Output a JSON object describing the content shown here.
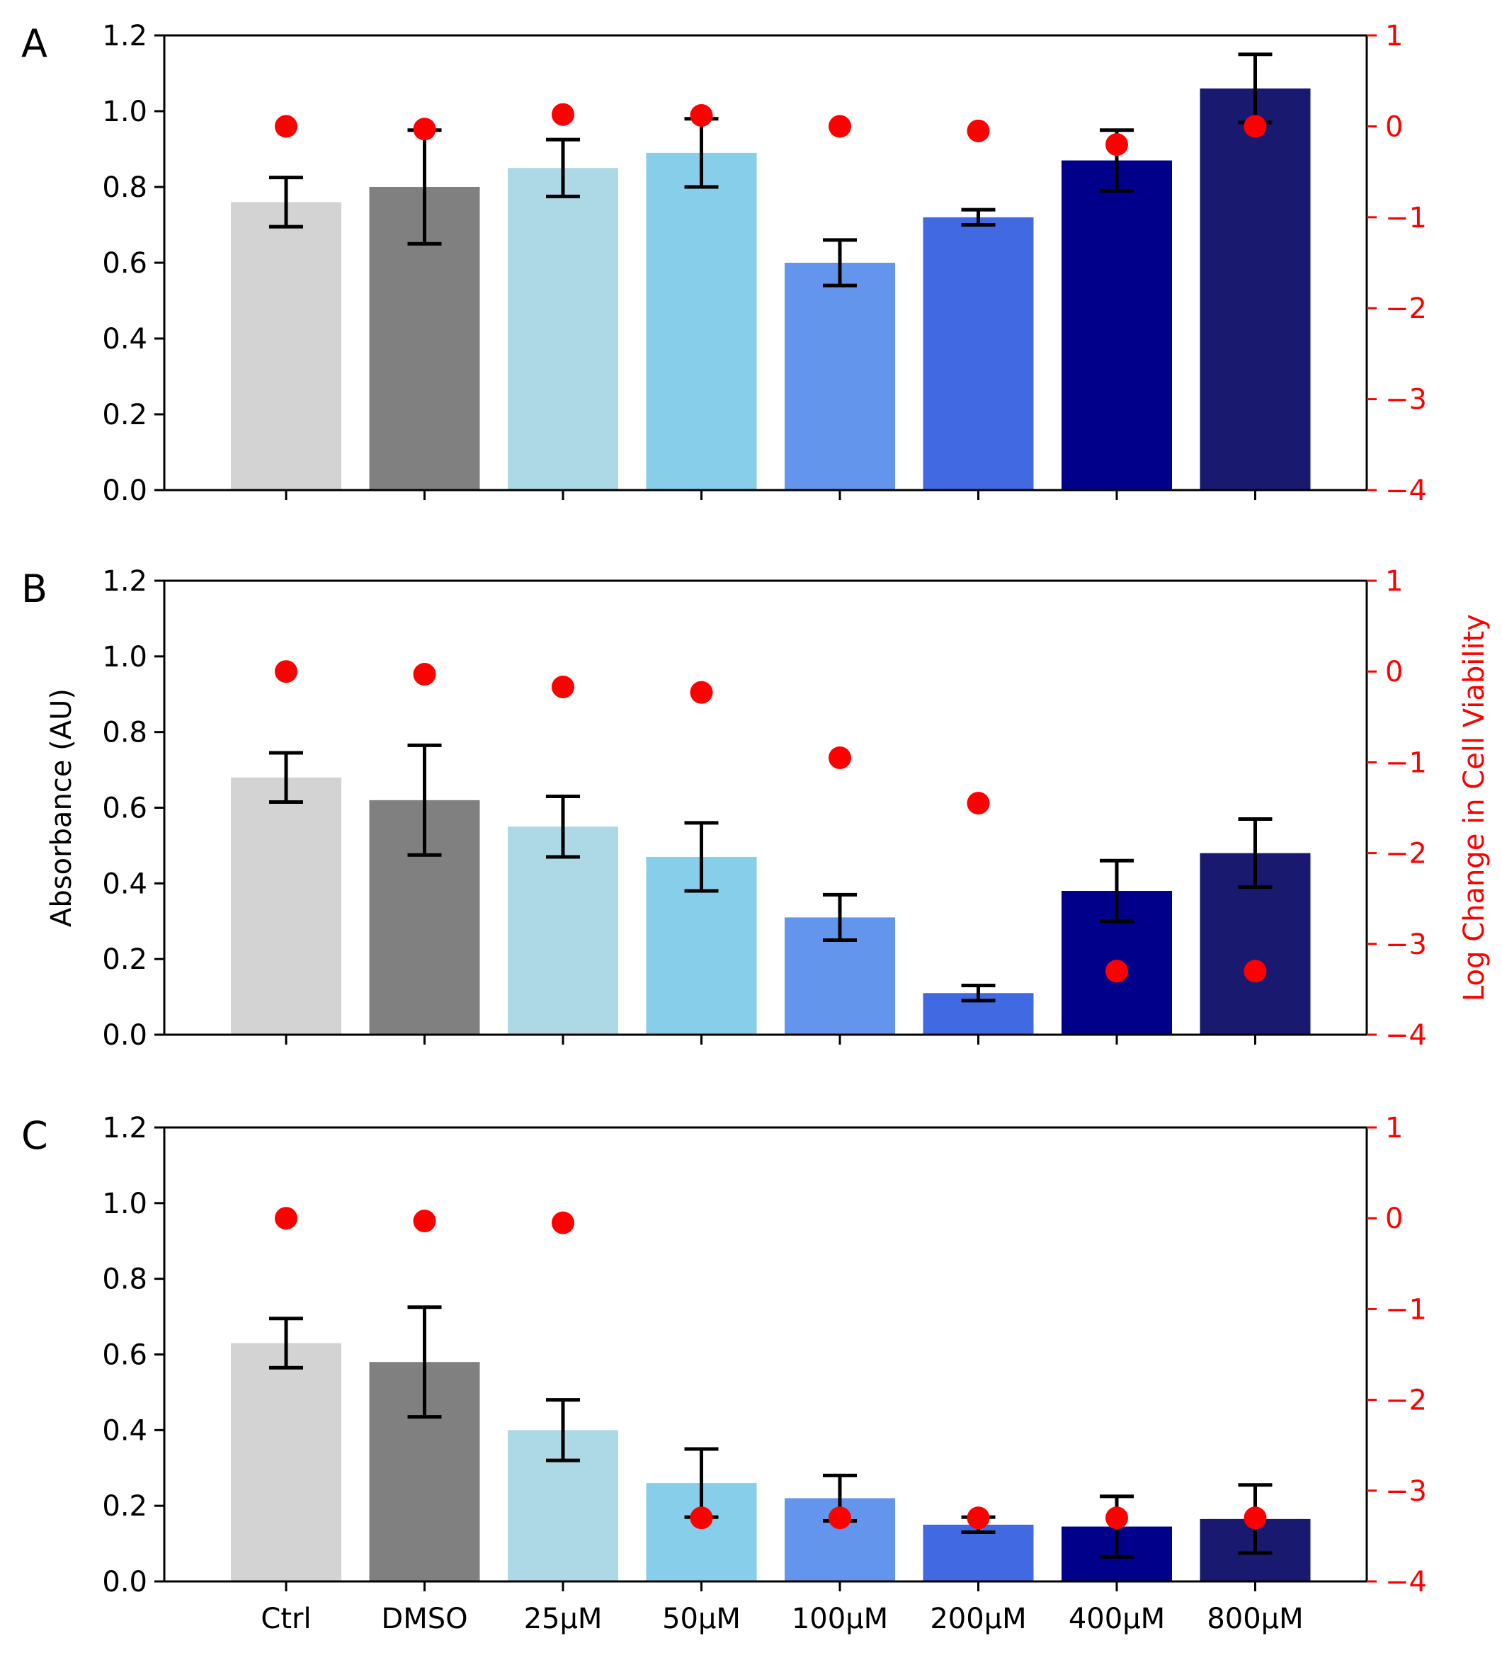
{
  "colors": {
    "right_axis": "#ff0000",
    "dots": "#ff0000",
    "error_bars": "#000000",
    "bars": [
      "#d3d3d3",
      "#808080",
      "#add8e6",
      "#87ceeb",
      "#6495ed",
      "#4169e1",
      "#00008b",
      "#191970"
    ]
  },
  "chart_data": [
    {
      "type": "bar",
      "panel_label": "A",
      "categories": [
        "Ctrl",
        "DMSO",
        "25µM",
        "50µM",
        "100µM",
        "200µM",
        "400µM",
        "800µM"
      ],
      "series": [
        {
          "name": "Absorbance (AU)",
          "axis": "left",
          "values": [
            0.76,
            0.8,
            0.85,
            0.89,
            0.6,
            0.72,
            0.87,
            1.06
          ],
          "errors": [
            0.065,
            0.15,
            0.075,
            0.09,
            0.06,
            0.02,
            0.08,
            0.09
          ]
        },
        {
          "name": "Log Change in Cell Viability",
          "axis": "right",
          "type": "scatter",
          "values": [
            0.0,
            -0.03,
            0.13,
            0.12,
            0.0,
            -0.05,
            -0.2,
            0.0
          ]
        }
      ],
      "ylim": [
        0,
        1.2
      ],
      "yticks": [
        "0.0",
        "0.2",
        "0.4",
        "0.6",
        "0.8",
        "1.0",
        "1.2"
      ],
      "y2lim": [
        -4,
        1
      ],
      "y2ticks": [
        "−4",
        "−3",
        "−2",
        "−1",
        "0",
        "1"
      ]
    },
    {
      "type": "bar",
      "panel_label": "B",
      "ylabel": "Absorbance (AU)",
      "y2label": "Log Change in Cell Viability",
      "categories": [
        "Ctrl",
        "DMSO",
        "25µM",
        "50µM",
        "100µM",
        "200µM",
        "400µM",
        "800µM"
      ],
      "series": [
        {
          "name": "Absorbance (AU)",
          "axis": "left",
          "values": [
            0.68,
            0.62,
            0.55,
            0.47,
            0.31,
            0.11,
            0.38,
            0.48
          ],
          "errors": [
            0.065,
            0.145,
            0.08,
            0.09,
            0.06,
            0.02,
            0.08,
            0.09
          ]
        },
        {
          "name": "Log Change in Cell Viability",
          "axis": "right",
          "type": "scatter",
          "values": [
            0.0,
            -0.03,
            -0.17,
            -0.23,
            -0.95,
            -1.45,
            -3.3,
            -3.3
          ]
        }
      ],
      "ylim": [
        0,
        1.2
      ],
      "yticks": [
        "0.0",
        "0.2",
        "0.4",
        "0.6",
        "0.8",
        "1.0",
        "1.2"
      ],
      "y2lim": [
        -4,
        1
      ],
      "y2ticks": [
        "−4",
        "−3",
        "−2",
        "−1",
        "0",
        "1"
      ]
    },
    {
      "type": "bar",
      "panel_label": "C",
      "categories": [
        "Ctrl",
        "DMSO",
        "25µM",
        "50µM",
        "100µM",
        "200µM",
        "400µM",
        "800µM"
      ],
      "series": [
        {
          "name": "Absorbance (AU)",
          "axis": "left",
          "values": [
            0.63,
            0.58,
            0.4,
            0.26,
            0.22,
            0.15,
            0.145,
            0.165
          ],
          "errors": [
            0.065,
            0.145,
            0.08,
            0.09,
            0.06,
            0.02,
            0.08,
            0.09
          ]
        },
        {
          "name": "Log Change in Cell Viability",
          "axis": "right",
          "type": "scatter",
          "values": [
            0.0,
            -0.03,
            -0.05,
            -3.3,
            -3.3,
            -3.3,
            -3.3,
            -3.3
          ]
        }
      ],
      "ylim": [
        0,
        1.2
      ],
      "yticks": [
        "0.0",
        "0.2",
        "0.4",
        "0.6",
        "0.8",
        "1.0",
        "1.2"
      ],
      "y2lim": [
        -4,
        1
      ],
      "y2ticks": [
        "−4",
        "−3",
        "−2",
        "−1",
        "0",
        "1"
      ],
      "xticklabels_shown": true
    }
  ]
}
